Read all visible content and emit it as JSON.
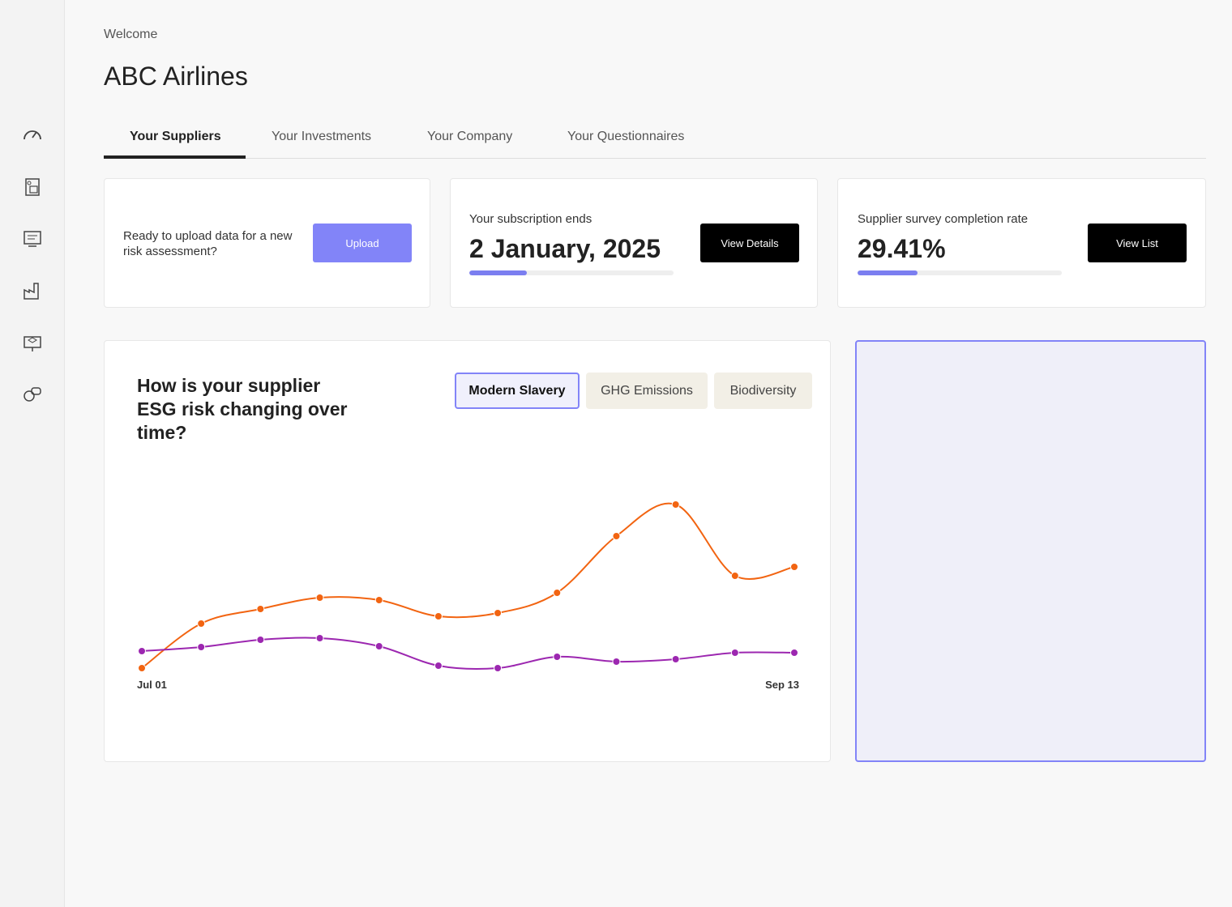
{
  "header": {
    "greeting": "Welcome",
    "title": "ABC Airlines"
  },
  "tabs": [
    "Your Suppliers",
    "Your Investments",
    "Your Company",
    "Your Questionnaires"
  ],
  "cards": {
    "upload": {
      "text": "Ready to upload data for a new risk assessment?",
      "button": "Upload"
    },
    "subscription": {
      "label": "Your subscription ends",
      "date": "2 January, 2025",
      "progress": 28,
      "button": "View Details"
    },
    "completion": {
      "label": "Supplier survey completion rate",
      "value": 29.41,
      "value_label": "29.41%",
      "button": "View List"
    }
  },
  "chart_data": {
    "type": "line",
    "title": "How is your supplier ESG risk changing over time?",
    "filters": [
      "Modern Slavery",
      "GHG Emissions",
      "Biodiversity"
    ],
    "categories": [
      "Jul 01",
      null,
      null,
      null,
      null,
      null,
      null,
      null,
      null,
      null,
      null,
      "Sep 13"
    ],
    "series": [
      {
        "color": "#f26411",
        "values": [
          25,
          80,
          98,
          112,
          109,
          89,
          93,
          118,
          188,
          227,
          139,
          150
        ]
      },
      {
        "color": "#9c27b0",
        "values": [
          46,
          51,
          60,
          62,
          52,
          28,
          25,
          39,
          33,
          36,
          44,
          44
        ]
      }
    ],
    "ylim": [
      0,
      250
    ]
  }
}
